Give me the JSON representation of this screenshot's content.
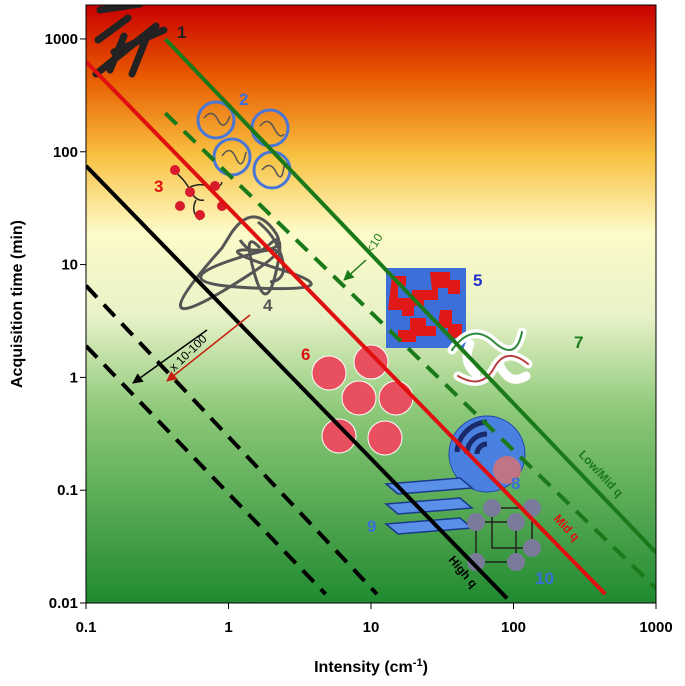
{
  "chart_data": {
    "type": "line",
    "xlabel": "Intensity (cm",
    "xlabel_sup": "-1",
    "xlabel_end": ")",
    "ylabel": "Acquisition time (min)",
    "x_scale": "log",
    "y_scale": "log",
    "xlim": [
      0.1,
      1000
    ],
    "ylim": [
      0.01,
      2000
    ],
    "x_ticks": [
      0.1,
      1,
      10,
      100,
      1000
    ],
    "x_tick_labels": [
      "0.1",
      "1",
      "10",
      "100",
      "1000"
    ],
    "y_ticks": [
      0.01,
      0.1,
      1,
      10,
      100,
      1000
    ],
    "y_tick_labels": [
      "0.01",
      "0.1",
      "1",
      "10",
      "100",
      "1000"
    ],
    "grid": false,
    "background": "vertical gradient: red (top), yellow, green (bottom)",
    "series": [
      {
        "name": "Low/Mid q",
        "color": "#1a7a1a",
        "style": "solid",
        "x": [
          0.36,
          1000
        ],
        "y": [
          1000,
          0.028
        ],
        "label_color": "#1a7a1a"
      },
      {
        "name": "",
        "color": "#1a7a1a",
        "style": "dashed",
        "x": [
          0.36,
          1000
        ],
        "y": [
          220,
          0.0135
        ]
      },
      {
        "name": "Mid q",
        "color": "#e01010",
        "style": "solid",
        "x": [
          0.1,
          440
        ],
        "y": [
          630,
          0.012
        ],
        "label_color": "#e01010"
      },
      {
        "name": "High q",
        "color": "#000000",
        "style": "solid",
        "x": [
          0.1,
          90
        ],
        "y": [
          75,
          0.011
        ],
        "label_color": "#000000"
      },
      {
        "name": "",
        "color": "#000000",
        "style": "dashed",
        "x": [
          0.1,
          11
        ],
        "y": [
          6.5,
          0.012
        ]
      },
      {
        "name": "",
        "color": "#000000",
        "style": "dashed",
        "x": [
          0.1,
          4.8
        ],
        "y": [
          1.9,
          0.012
        ]
      }
    ],
    "annotations": [
      {
        "text": "<10",
        "color": "#1a7a1a"
      },
      {
        "text": "x 10-100",
        "color": "#000000"
      }
    ],
    "sample_labels": [
      {
        "text": "1",
        "color": "#222222"
      },
      {
        "text": "2",
        "color": "#3a6fd8"
      },
      {
        "text": "3",
        "color": "#e01010"
      },
      {
        "text": "4",
        "color": "#555555"
      },
      {
        "text": "5",
        "color": "#2233cc"
      },
      {
        "text": "6",
        "color": "#e01010"
      },
      {
        "text": "7",
        "color": "#1a7a1a"
      },
      {
        "text": "8",
        "color": "#3a6fd8"
      },
      {
        "text": "9",
        "color": "#3a6fd8"
      },
      {
        "text": "10",
        "color": "#3a6fd8"
      }
    ]
  }
}
